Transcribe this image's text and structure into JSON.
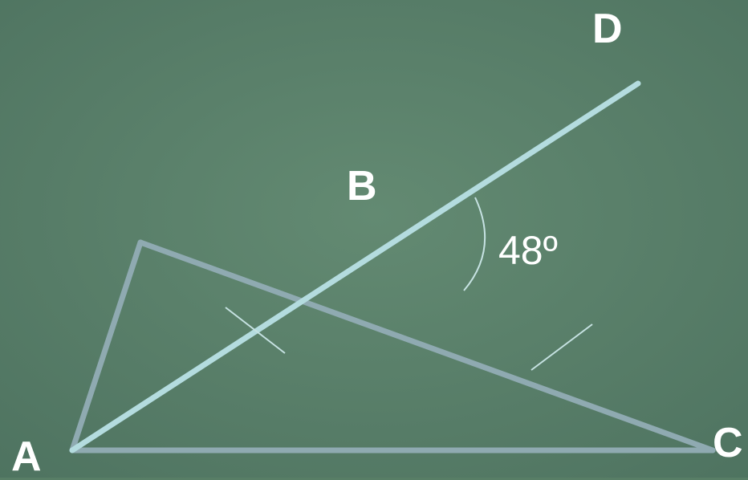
{
  "points": {
    "a": "A",
    "b": "B",
    "c": "C",
    "d": "D"
  },
  "angle_label": "48º",
  "colors": {
    "board": "#587e66",
    "ray": "#b4dcdf",
    "triangle": "#8faab1",
    "tick": "#c6e2e2",
    "text": "#ffffff"
  }
}
